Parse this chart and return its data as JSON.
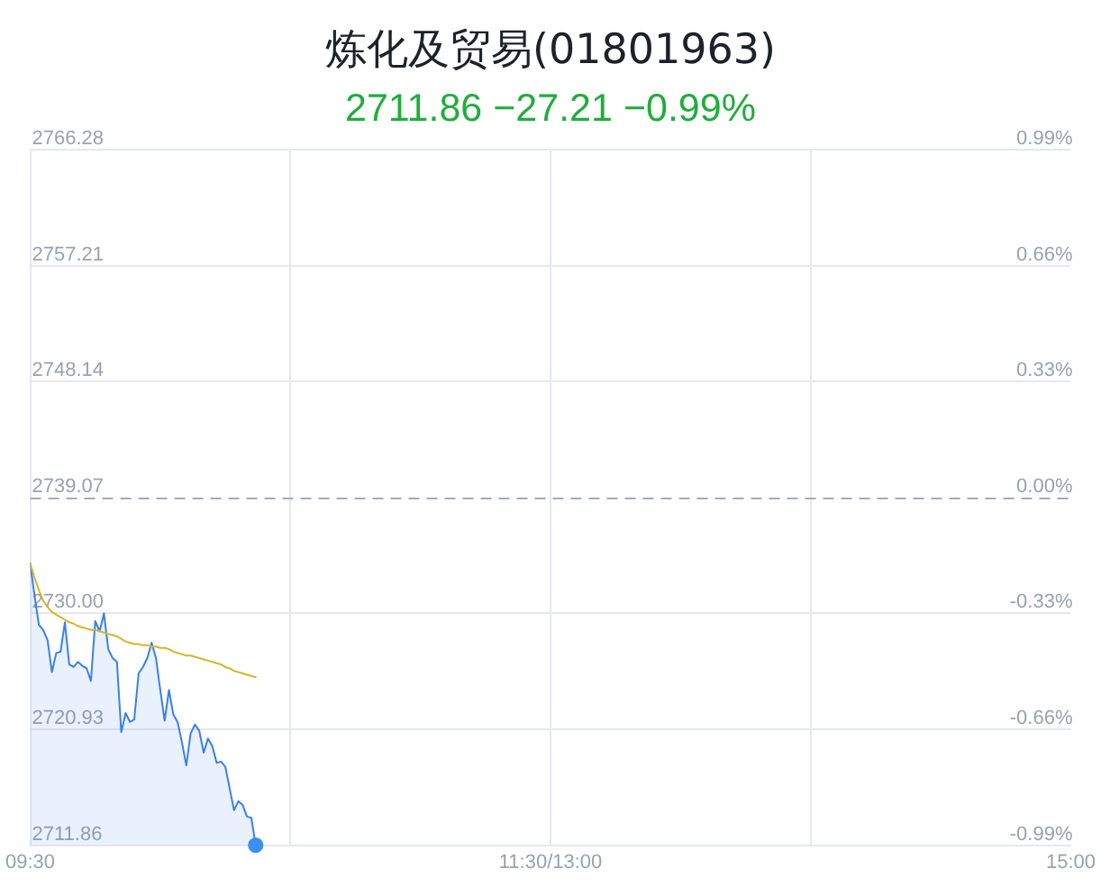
{
  "chart_data": {
    "type": "line",
    "title": "炼化及贸易(01801963)",
    "subtitle": "2711.86 −27.21 −0.99%",
    "categories": [
      "09:30",
      null,
      null,
      null,
      null,
      null,
      null,
      null,
      null,
      null,
      null,
      null,
      null,
      null,
      null,
      null,
      null,
      null,
      null,
      null,
      null,
      null,
      null,
      null,
      null,
      null,
      null,
      null,
      null,
      null,
      null,
      null,
      null,
      null,
      null,
      null,
      null,
      null,
      null,
      null,
      null,
      null,
      null,
      null,
      null,
      null,
      null,
      null,
      null,
      null,
      null,
      null,
      null,
      null,
      null,
      null,
      null,
      null,
      null,
      null,
      null,
      null,
      null,
      null,
      null,
      null,
      null,
      null,
      null,
      null,
      null,
      null,
      null,
      null,
      null,
      null,
      null,
      null,
      null,
      null,
      null,
      null,
      null,
      null,
      null,
      null,
      null,
      null,
      null,
      null,
      null,
      null,
      null,
      null,
      null,
      null,
      null,
      null,
      null,
      null,
      null,
      null,
      null,
      null,
      null,
      null,
      null,
      null,
      null,
      null,
      null,
      null,
      null,
      null,
      null,
      null,
      null,
      null,
      null,
      null,
      "11:30/13:00",
      null,
      null,
      null,
      null,
      null,
      null,
      null,
      null,
      null,
      null,
      null,
      null,
      null,
      null,
      null,
      null,
      null,
      null,
      null,
      null,
      null,
      null,
      null,
      null,
      null,
      null,
      null,
      null,
      null,
      null,
      null,
      null,
      null,
      null,
      null,
      null,
      null,
      null,
      null,
      null,
      null,
      null,
      null,
      null,
      null,
      null,
      null,
      null,
      null,
      null,
      null,
      null,
      null,
      null,
      null,
      null,
      null,
      null,
      null,
      null,
      null,
      null,
      null,
      null,
      null,
      null,
      null,
      null,
      null,
      null,
      null,
      null,
      null,
      null,
      null,
      null,
      null,
      null,
      null,
      null,
      null,
      null,
      null,
      null,
      null,
      null,
      null,
      null,
      null,
      null,
      null,
      null,
      null,
      null,
      null,
      null,
      null,
      null,
      null,
      null,
      null,
      null,
      null,
      null,
      null,
      null,
      null,
      null,
      null,
      null,
      null,
      null,
      null,
      null,
      null,
      null,
      null,
      null,
      null,
      "15:00"
    ],
    "ylim": [
      2711.86,
      2766.28
    ],
    "yticks": [
      2711.86,
      2720.93,
      {
        "value": 2730,
        "label": "2730.00"
      },
      2739.07,
      2748.14,
      2757.21,
      2766.28
    ],
    "y2lim": [
      -0.99,
      0.99
    ],
    "y2ticks": [
      {
        "value": -0.99,
        "label": "-0.99%"
      },
      {
        "value": -0.66,
        "label": "-0.66%"
      },
      {
        "value": -0.33,
        "label": "-0.33%"
      },
      {
        "value": 0,
        "label": "0.00%"
      },
      {
        "value": 0.33,
        "label": "0.33%"
      },
      {
        "value": 0.66,
        "label": "0.66%"
      },
      {
        "value": 0.99,
        "label": "0.99%"
      }
    ],
    "grid": true,
    "ref_lines": [
      {
        "axis": "y",
        "value": 2739.07,
        "color": "#a3aaba",
        "line_style": "dashed"
      }
    ],
    "series": [
      {
        "type": "area",
        "color": "#3a7ff0",
        "values": [
          2733.9,
          2731.4,
          2729.1,
          2728.7,
          2727.9,
          2725.4,
          2726.9,
          2727.0,
          2729.3,
          2726.0,
          2725.8,
          2726.2,
          2725.9,
          2725.7,
          2724.7,
          2729.4,
          2728.6,
          2730.0,
          2727.2,
          2726.5,
          2726.2,
          2720.7,
          2722.2,
          2721.5,
          2721.7,
          2725.3,
          2725.8,
          2726.5,
          2727.7,
          2726.5,
          2724.0,
          2721.6,
          2724.0,
          2722.1,
          2721.5,
          2719.9,
          2718.1,
          2720.6,
          2721.3,
          2720.8,
          2719.1,
          2720.2,
          2719.6,
          2718.3,
          2718.4,
          2718.0,
          2716.3,
          2714.6,
          2715.3,
          2715.0,
          2714.1,
          2714.0,
          2711.86,
          null,
          null,
          null,
          null,
          null,
          null,
          null,
          null,
          null,
          null,
          null,
          null,
          null,
          null,
          null,
          null,
          null,
          null,
          null,
          null,
          null,
          null,
          null,
          null,
          null,
          null,
          null,
          null,
          null,
          null,
          null,
          null,
          null,
          null,
          null,
          null,
          null,
          null,
          null,
          null,
          null,
          null,
          null,
          null,
          null,
          null,
          null,
          null,
          null,
          null,
          null,
          null,
          null,
          null,
          null,
          null,
          null,
          null,
          null,
          null,
          null,
          null,
          null,
          null,
          null,
          null,
          null,
          null,
          null,
          null,
          null,
          null,
          null,
          null,
          null,
          null,
          null,
          null,
          null,
          null,
          null,
          null,
          null,
          null,
          null,
          null,
          null,
          null,
          null,
          null,
          null,
          null,
          null,
          null,
          null,
          null,
          null,
          null,
          null,
          null,
          null,
          null,
          null,
          null,
          null,
          null,
          null,
          null,
          null,
          null,
          null,
          null,
          null,
          null,
          null,
          null,
          null,
          null,
          null,
          null,
          null,
          null,
          null,
          null,
          null,
          null,
          null,
          null,
          null,
          null,
          null,
          null,
          null,
          null,
          null,
          null,
          null,
          null,
          null,
          null,
          null,
          null,
          null,
          null,
          null,
          null,
          null,
          null,
          null,
          null,
          null,
          null,
          null,
          null,
          null,
          null,
          null,
          null,
          null,
          null,
          null,
          null,
          null,
          null,
          null,
          null,
          null,
          null,
          null,
          null,
          null,
          null,
          null,
          null,
          null,
          null,
          null,
          null,
          null,
          null,
          null,
          null,
          null,
          null,
          null,
          null,
          null,
          null
        ]
      },
      {
        "color": "#d6b526",
        "values": [
          2733.9,
          2732.8,
          2731.8,
          2731.0,
          2730.5,
          2730.1,
          2729.9,
          2729.7,
          2729.5,
          2729.3,
          2729.2,
          2729.0,
          2728.9,
          2728.8,
          2728.7,
          2728.7,
          2728.6,
          2728.5,
          2728.4,
          2728.3,
          2728.2,
          2728.0,
          2727.8,
          2727.7,
          2727.6,
          2727.6,
          2727.5,
          2727.5,
          2727.4,
          2727.4,
          2727.3,
          2727.3,
          2727.2,
          2727.0,
          2726.9,
          2726.8,
          2726.7,
          2726.7,
          2726.6,
          2726.5,
          2726.4,
          2726.3,
          2726.2,
          2726.1,
          2726.0,
          2725.8,
          2725.7,
          2725.5,
          2725.4,
          2725.3,
          2725.2,
          2725.1,
          2725.0,
          null,
          null,
          null,
          null,
          null,
          null,
          null,
          null,
          null,
          null,
          null,
          null,
          null,
          null,
          null,
          null,
          null,
          null,
          null,
          null,
          null,
          null,
          null,
          null,
          null,
          null,
          null,
          null,
          null,
          null,
          null,
          null,
          null,
          null,
          null,
          null,
          null,
          null,
          null,
          null,
          null,
          null,
          null,
          null,
          null,
          null,
          null,
          null,
          null,
          null,
          null,
          null,
          null,
          null,
          null,
          null,
          null,
          null,
          null,
          null,
          null,
          null,
          null,
          null,
          null,
          null,
          null,
          null,
          null,
          null,
          null,
          null,
          null,
          null,
          null,
          null,
          null,
          null,
          null,
          null,
          null,
          null,
          null,
          null,
          null,
          null,
          null,
          null,
          null,
          null,
          null,
          null,
          null,
          null,
          null,
          null,
          null,
          null,
          null,
          null,
          null,
          null,
          null,
          null,
          null,
          null,
          null,
          null,
          null,
          null,
          null,
          null,
          null,
          null,
          null,
          null,
          null,
          null,
          null,
          null,
          null,
          null,
          null,
          null,
          null,
          null,
          null,
          null,
          null,
          null,
          null,
          null,
          null,
          null,
          null,
          null,
          null,
          null,
          null,
          null,
          null,
          null,
          null,
          null,
          null,
          null,
          null,
          null,
          null,
          null,
          null,
          null,
          null,
          null,
          null,
          null,
          null,
          null,
          null,
          null,
          null,
          null,
          null,
          null,
          null,
          null,
          null,
          null,
          null,
          null,
          null,
          null,
          null,
          null,
          null,
          null,
          null,
          null,
          null,
          null,
          null,
          null,
          null,
          null,
          null,
          null,
          null,
          null
        ]
      },
      {
        "type": "scatter",
        "color": "#3d8ef5",
        "marker": "circle",
        "values": [
          null,
          null,
          null,
          null,
          null,
          null,
          null,
          null,
          null,
          null,
          null,
          null,
          null,
          null,
          null,
          null,
          null,
          null,
          null,
          null,
          null,
          null,
          null,
          null,
          null,
          null,
          null,
          null,
          null,
          null,
          null,
          null,
          null,
          null,
          null,
          null,
          null,
          null,
          null,
          null,
          null,
          null,
          null,
          null,
          null,
          null,
          null,
          null,
          null,
          null,
          null,
          null,
          2711.86,
          null,
          null,
          null,
          null,
          null,
          null,
          null,
          null,
          null,
          null,
          null,
          null,
          null,
          null,
          null,
          null,
          null,
          null,
          null,
          null,
          null,
          null,
          null,
          null,
          null,
          null,
          null,
          null,
          null,
          null,
          null,
          null,
          null,
          null,
          null,
          null,
          null,
          null,
          null,
          null,
          null,
          null,
          null,
          null,
          null,
          null,
          null,
          null,
          null,
          null,
          null,
          null,
          null,
          null,
          null,
          null,
          null,
          null,
          null,
          null,
          null,
          null,
          null,
          null,
          null,
          null,
          null,
          null,
          null,
          null,
          null,
          null,
          null,
          null,
          null,
          null,
          null,
          null,
          null,
          null,
          null,
          null,
          null,
          null,
          null,
          null,
          null,
          null,
          null,
          null,
          null,
          null,
          null,
          null,
          null,
          null,
          null,
          null,
          null,
          null,
          null,
          null,
          null,
          null,
          null,
          null,
          null,
          null,
          null,
          null,
          null,
          null,
          null,
          null,
          null,
          null,
          null,
          null,
          null,
          null,
          null,
          null,
          null,
          null,
          null,
          null,
          null,
          null,
          null,
          null,
          null,
          null,
          null,
          null,
          null,
          null,
          null,
          null,
          null,
          null,
          null,
          null,
          null,
          null,
          null,
          null,
          null,
          null,
          null,
          null,
          null,
          null,
          null,
          null,
          null,
          null,
          null,
          null,
          null,
          null,
          null,
          null,
          null,
          null,
          null,
          null,
          null,
          null,
          null,
          null,
          null,
          null,
          null,
          null,
          null,
          null,
          null,
          null,
          null,
          null,
          null,
          null,
          null,
          null,
          null,
          null,
          null,
          null
        ]
      }
    ]
  }
}
